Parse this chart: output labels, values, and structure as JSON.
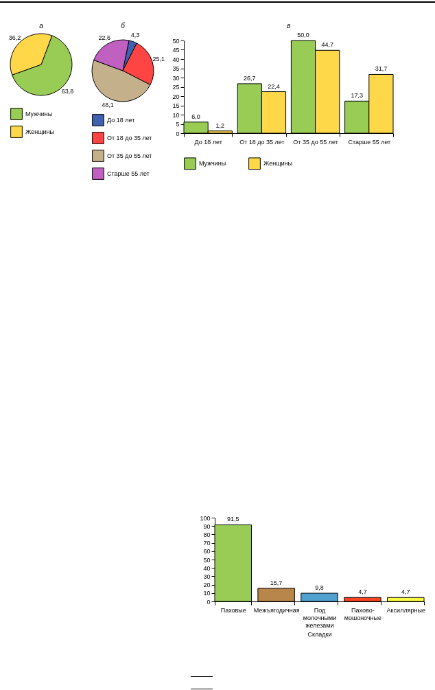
{
  "chart_data": [
    {
      "type": "pie",
      "title": "а",
      "categories": [
        "Мужчины",
        "Женщины"
      ],
      "values": [
        63.8,
        36.2
      ],
      "colors": [
        "#99cc55",
        "#ffd84a"
      ],
      "value_labels": [
        "63,8",
        "36,2"
      ],
      "legend": "bottom"
    },
    {
      "type": "pie",
      "title": "б",
      "categories": [
        "До 18 лет",
        "От 18 до 35 лет",
        "От 35 до 55 лет",
        "Старше 55 лет"
      ],
      "values": [
        4.3,
        25.1,
        48.1,
        22.6
      ],
      "colors": [
        "#4060b0",
        "#ff4444",
        "#c4b08a",
        "#c060c0"
      ],
      "value_labels": [
        "4,3",
        "25,1",
        "48,1",
        "22,6"
      ],
      "legend": "bottom"
    },
    {
      "type": "bar",
      "title": "в",
      "categories": [
        "До 18 лет",
        "От 18 до 35 лет",
        "От 35 до 55 лет",
        "Старше 55 лет"
      ],
      "series": [
        {
          "name": "Мужчины",
          "color": "#99cc55",
          "values": [
            6.0,
            26.7,
            50.0,
            17.3
          ],
          "value_labels": [
            "6,0",
            "26,7",
            "50,0",
            "17,3"
          ]
        },
        {
          "name": "Женщины",
          "color": "#ffd84a",
          "values": [
            1.2,
            22.4,
            44.7,
            31.7
          ],
          "value_labels": [
            "1,2",
            "22,4",
            "44,7",
            "31,7"
          ]
        }
      ],
      "ylim": [
        0,
        50
      ],
      "yticks": [
        0,
        5,
        10,
        15,
        20,
        25,
        30,
        35,
        40,
        45,
        50
      ],
      "legend": "bottom"
    },
    {
      "type": "bar",
      "xlabel": "Складки",
      "categories": [
        "Паховые",
        "Межъягодичная",
        "Под молочными железами",
        "Пахово-мошоночные",
        "Аксиллярные"
      ],
      "values": [
        91.5,
        15.7,
        9.8,
        4.7,
        4.7
      ],
      "colors": [
        "#99cc55",
        "#b8864a",
        "#50a0d0",
        "#ff4422",
        "#ffff44"
      ],
      "value_labels": [
        "91,5",
        "15,7",
        "9,8",
        "4,7",
        "4,7"
      ],
      "ylim": [
        0,
        100
      ],
      "yticks": [
        0,
        10,
        20,
        30,
        40,
        50,
        60,
        70,
        80,
        90,
        100
      ]
    }
  ]
}
